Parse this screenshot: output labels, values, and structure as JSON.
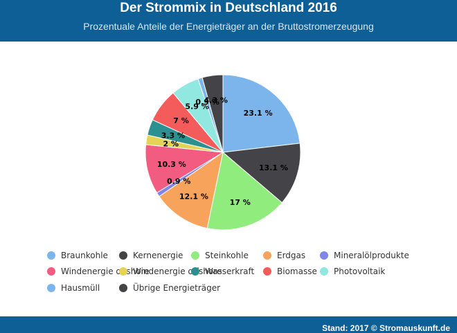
{
  "header": {
    "title": "Der Strommix in Deutschland 2016",
    "subtitle": "Prozentuale Anteile der Energieträger an der Bruttostromerzeugung"
  },
  "footer": {
    "source": "Stand: 2017 © Stromauskunft.de"
  },
  "chart_data": {
    "type": "pie",
    "title": "Der Strommix in Deutschland 2016",
    "subtitle": "Prozentuale Anteile der Energieträger an der Bruttostromerzeugung",
    "label_suffix": " %",
    "legend_position": "bottom",
    "slices": [
      {
        "name": "Braunkohle",
        "value": 23.1,
        "color": "#7cb5ec"
      },
      {
        "name": "Kernenergie",
        "value": 13.1,
        "color": "#434348"
      },
      {
        "name": "Steinkohle",
        "value": 17,
        "color": "#90ed7d"
      },
      {
        "name": "Erdgas",
        "value": 12.1,
        "color": "#f7a35c"
      },
      {
        "name": "Mineralölprodukte",
        "value": 0.9,
        "color": "#8085e9"
      },
      {
        "name": "Windenergie onshore",
        "value": 10.3,
        "color": "#f15c80"
      },
      {
        "name": "Windenergie offshore",
        "value": 2,
        "color": "#e4d354"
      },
      {
        "name": "Wasserkraft",
        "value": 3.3,
        "color": "#2b908f"
      },
      {
        "name": "Biomasse",
        "value": 7,
        "color": "#f45b5b"
      },
      {
        "name": "Photovoltaik",
        "value": 5.9,
        "color": "#91e8e1"
      },
      {
        "name": "Hausmüll",
        "value": 0.9,
        "color": "#7cb5ec"
      },
      {
        "name": "Übrige Energieträger",
        "value": 4.3,
        "color": "#434348"
      }
    ]
  }
}
